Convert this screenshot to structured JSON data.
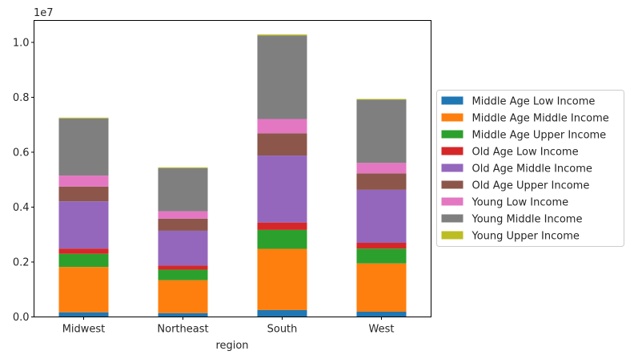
{
  "chart_data": {
    "type": "bar",
    "stacked": true,
    "title": "",
    "xlabel": "region",
    "ylabel": "",
    "offset_text": "1e7",
    "categories": [
      "Midwest",
      "Northeast",
      "South",
      "West"
    ],
    "ylim": [
      0,
      10800000
    ],
    "yticks": [
      0,
      2000000,
      4000000,
      6000000,
      8000000,
      10000000
    ],
    "ytick_labels": [
      "0.0",
      "0.2",
      "0.4",
      "0.6",
      "0.8",
      "1.0"
    ],
    "grid": false,
    "legend_position": "center-right outside plot",
    "series": [
      {
        "name": "Middle Age Low Income",
        "color": "#1f77b4",
        "values": [
          170000,
          140000,
          250000,
          190000
        ]
      },
      {
        "name": "Middle Age Middle Income",
        "color": "#ff7f0e",
        "values": [
          1650000,
          1200000,
          2230000,
          1760000
        ]
      },
      {
        "name": "Middle Age Upper Income",
        "color": "#2ca02c",
        "values": [
          480000,
          380000,
          690000,
          540000
        ]
      },
      {
        "name": "Old Age Low Income",
        "color": "#d62728",
        "values": [
          190000,
          150000,
          270000,
          210000
        ]
      },
      {
        "name": "Old Age Middle Income",
        "color": "#9467bd",
        "values": [
          1720000,
          1270000,
          2440000,
          1930000
        ]
      },
      {
        "name": "Old Age Upper Income",
        "color": "#8c564b",
        "values": [
          540000,
          440000,
          810000,
          600000
        ]
      },
      {
        "name": "Young Low Income",
        "color": "#e377c2",
        "values": [
          400000,
          270000,
          520000,
          380000
        ]
      },
      {
        "name": "Young Middle Income",
        "color": "#7f7f7f",
        "values": [
          2080000,
          1570000,
          3040000,
          2300000
        ]
      },
      {
        "name": "Young Upper Income",
        "color": "#bcbd22",
        "values": [
          30000,
          30000,
          40000,
          30000
        ]
      }
    ]
  }
}
